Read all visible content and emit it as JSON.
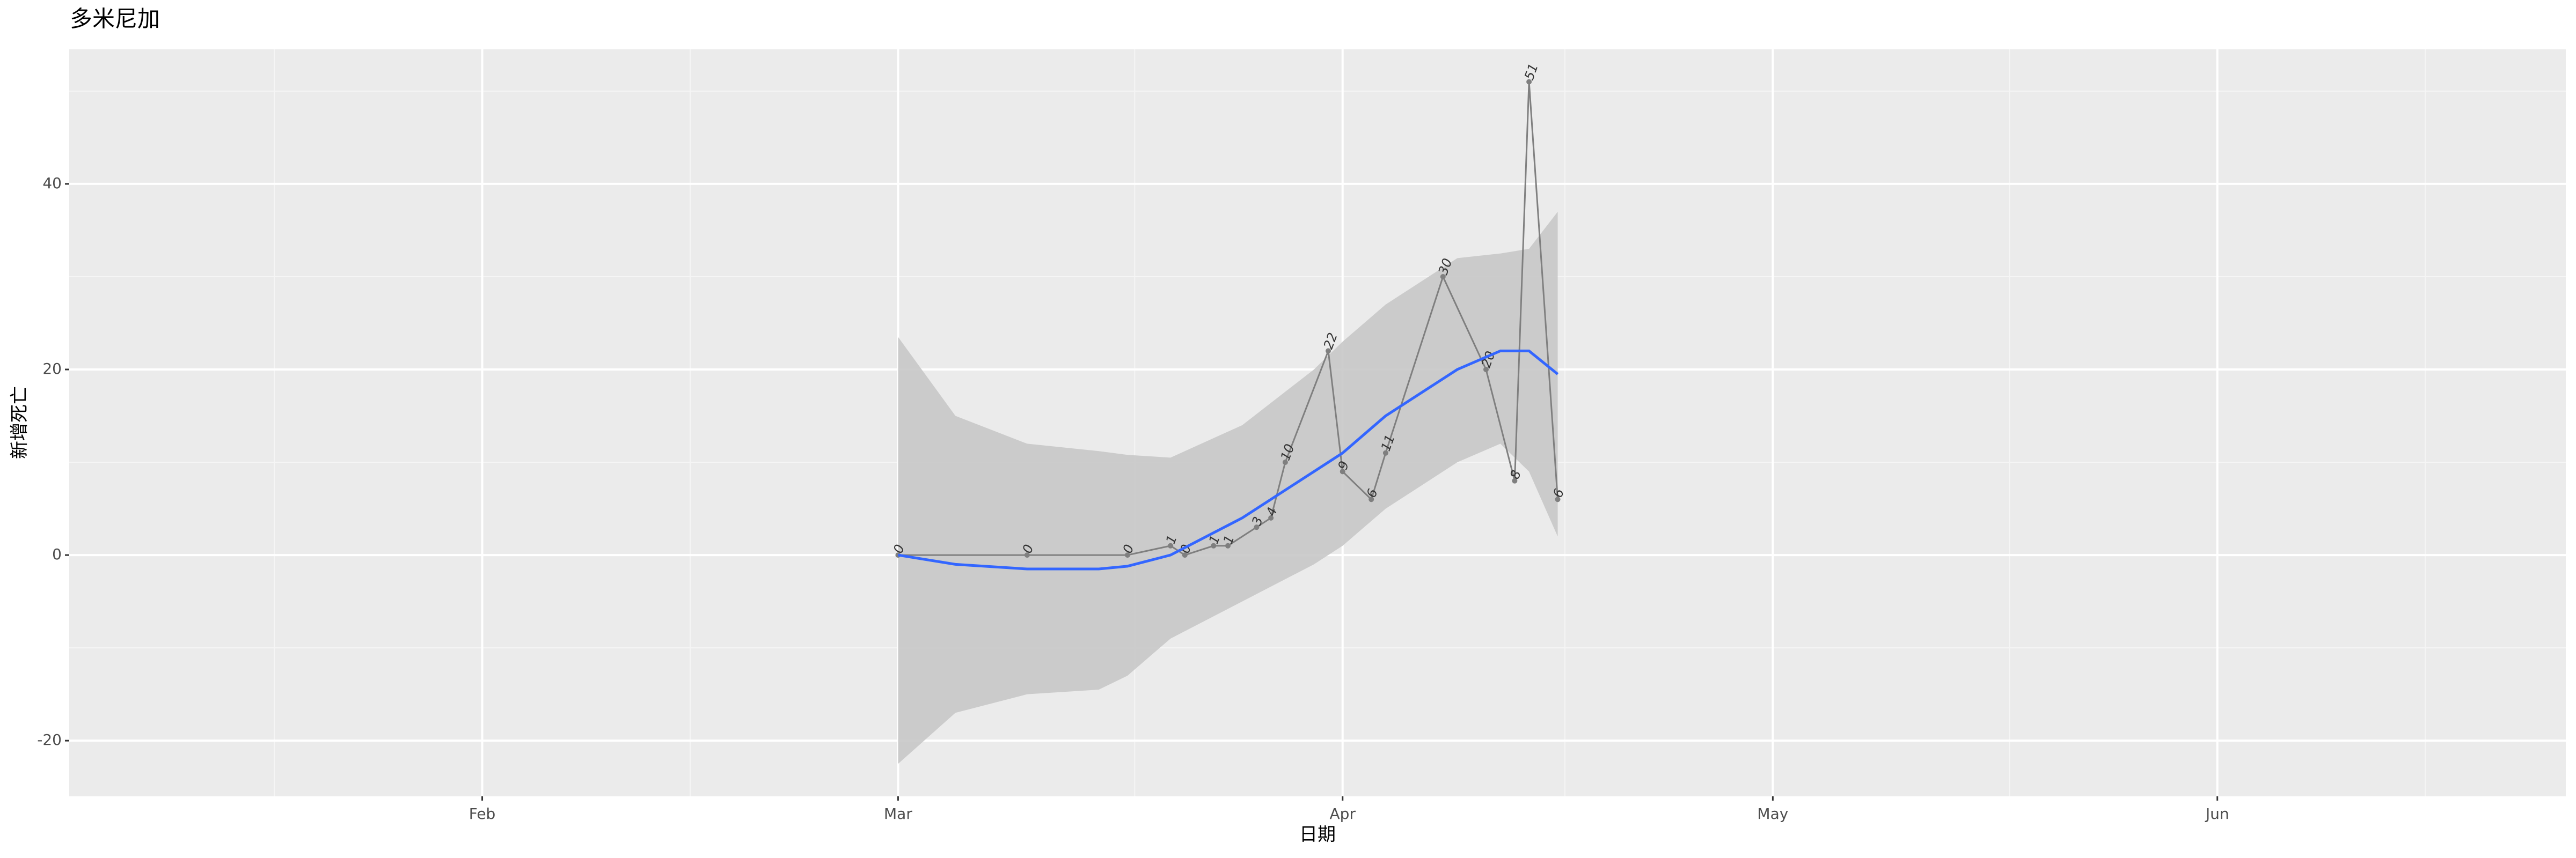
{
  "chart_data": {
    "type": "line",
    "title": "多米尼加",
    "x_label": "日期",
    "y_label": "新增死亡",
    "x": [
      61,
      70,
      77,
      80,
      81,
      83,
      84,
      86,
      87,
      88,
      91,
      92,
      94,
      95,
      99,
      102,
      104,
      105,
      107
    ],
    "series": [
      {
        "name": "新增死亡",
        "color": "#7f7f7f",
        "values": [
          0,
          0,
          0,
          1,
          0,
          1,
          1,
          3,
          4,
          10,
          22,
          9,
          6,
          11,
          30,
          20,
          8,
          51,
          6
        ]
      }
    ],
    "smooth": {
      "color": "#3366ff",
      "band_color": "#c8c8c8",
      "x": [
        61,
        65,
        70,
        75,
        77,
        80,
        85,
        90,
        92,
        95,
        100,
        103,
        105,
        107
      ],
      "values": [
        0,
        -1,
        -1.5,
        -1.5,
        -1.2,
        0,
        4,
        9,
        11,
        15,
        20,
        22,
        22,
        19.5
      ],
      "lower": [
        -22.5,
        -17,
        -15,
        -14.5,
        -13,
        -9,
        -5,
        -1,
        1,
        5,
        10,
        12,
        9,
        2
      ],
      "upper": [
        23.5,
        15,
        12,
        11.2,
        10.8,
        10.5,
        14,
        20,
        23,
        27,
        32,
        32.5,
        33,
        37
      ]
    },
    "xlim": [
      3.2,
      177.3
    ],
    "xticks": [
      {
        "value": 32,
        "label": "Feb"
      },
      {
        "value": 61,
        "label": "Mar"
      },
      {
        "value": 92,
        "label": "Apr"
      },
      {
        "value": 122,
        "label": "May"
      },
      {
        "value": 153,
        "label": "Jun"
      }
    ],
    "ylim": [
      -26,
      54.5
    ],
    "yticks": [
      -20,
      0,
      20,
      40
    ],
    "grid": true
  }
}
